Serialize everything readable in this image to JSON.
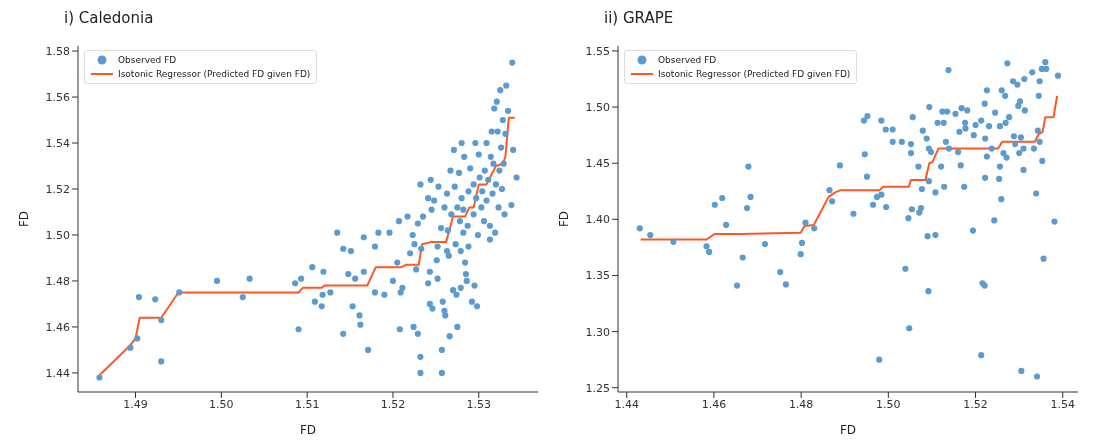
{
  "chart_data": [
    {
      "type": "scatter",
      "title": "i) Caledonia",
      "xlabel": "FD",
      "ylabel": "FD",
      "legend": "top left",
      "grid": false,
      "xlim": [
        1.4833,
        1.5369
      ],
      "xticks": [
        1.49,
        {
          "value": 1.5,
          "label": "1.50"
        },
        1.51,
        1.52,
        1.53
      ],
      "ylim": [
        1.4317,
        1.5822
      ],
      "yticks": [
        1.44,
        1.46,
        1.48,
        {
          "value": 1.5,
          "label": "1.50"
        },
        1.52,
        1.54,
        1.56,
        1.58
      ],
      "series": [
        {
          "name": "Observed FD",
          "type": "scatter",
          "marker": "circle",
          "color": "#5b9bd0",
          "x": [
            1.4858,
            1.4894,
            1.4902,
            1.4904,
            1.4923,
            1.493,
            1.493,
            1.4951,
            1.4995,
            1.5025,
            1.5033,
            1.5086,
            1.509,
            1.5093,
            1.5106,
            1.5109,
            1.5117,
            1.5118,
            1.5119,
            1.5127,
            1.5135,
            1.5142,
            1.5142,
            1.5148,
            1.5151,
            1.5153,
            1.5156,
            1.5161,
            1.5162,
            1.5166,
            1.5166,
            1.5171,
            1.5179,
            1.5179,
            1.5183,
            1.519,
            1.5196,
            1.52,
            1.5205,
            1.5207,
            1.5208,
            1.5209,
            1.5211,
            1.5217,
            1.522,
            1.5223,
            1.5224,
            1.5225,
            1.5227,
            1.5229,
            1.5229,
            1.5232,
            1.5232,
            1.5232,
            1.5233,
            1.5235,
            1.5241,
            1.5243,
            1.5243,
            1.5244,
            1.5246,
            1.5241,
            1.5245,
            1.5248,
            1.5252,
            1.5252,
            1.5251,
            1.5253,
            1.5256,
            1.5257,
            1.5257,
            1.5258,
            1.526,
            1.526,
            1.5261,
            1.5263,
            1.5263,
            1.5264,
            1.5265,
            1.5266,
            1.5267,
            1.5268,
            1.527,
            1.5271,
            1.5272,
            1.5273,
            1.5274,
            1.5275,
            1.5275,
            1.5277,
            1.5278,
            1.5279,
            1.5279,
            1.528,
            1.528,
            1.5282,
            1.5282,
            1.5283,
            1.5284,
            1.5285,
            1.5286,
            1.5287,
            1.5288,
            1.5288,
            1.529,
            1.5292,
            1.5294,
            1.5294,
            1.5295,
            1.5296,
            1.5297,
            1.5298,
            1.5299,
            1.53,
            1.5301,
            1.5303,
            1.5304,
            1.5306,
            1.5307,
            1.5309,
            1.5309,
            1.5311,
            1.5313,
            1.5313,
            1.5314,
            1.5315,
            1.5316,
            1.5317,
            1.5318,
            1.5319,
            1.532,
            1.5321,
            1.5322,
            1.5323,
            1.5324,
            1.5325,
            1.5326,
            1.5327,
            1.5328,
            1.5329,
            1.533,
            1.5331,
            1.5332,
            1.5334,
            1.5338,
            1.5339,
            1.534,
            1.5344
          ],
          "values": [
            1.438,
            1.451,
            1.455,
            1.473,
            1.472,
            1.463,
            1.445,
            1.475,
            1.48,
            1.473,
            1.481,
            1.479,
            1.459,
            1.481,
            1.486,
            1.471,
            1.469,
            1.474,
            1.484,
            1.475,
            1.501,
            1.457,
            1.494,
            1.483,
            1.493,
            1.469,
            1.481,
            1.465,
            1.461,
            1.484,
            1.499,
            1.45,
            1.475,
            1.495,
            1.501,
            1.474,
            1.501,
            1.48,
            1.488,
            1.506,
            1.459,
            1.475,
            1.477,
            1.508,
            1.492,
            1.5,
            1.46,
            1.496,
            1.485,
            1.505,
            1.457,
            1.522,
            1.447,
            1.44,
            1.494,
            1.508,
            1.479,
            1.484,
            1.47,
            1.524,
            1.468,
            1.516,
            1.511,
            1.515,
            1.495,
            1.481,
            1.489,
            1.521,
            1.503,
            1.45,
            1.44,
            1.471,
            1.512,
            1.467,
            1.465,
            1.493,
            1.518,
            1.502,
            1.491,
            1.456,
            1.528,
            1.509,
            1.476,
            1.537,
            1.521,
            1.496,
            1.474,
            1.46,
            1.512,
            1.527,
            1.506,
            1.493,
            1.477,
            1.54,
            1.516,
            1.501,
            1.511,
            1.534,
            1.488,
            1.483,
            1.48,
            1.504,
            1.519,
            1.495,
            1.529,
            1.471,
            1.509,
            1.522,
            1.478,
            1.54,
            1.516,
            1.469,
            1.5,
            1.535,
            1.525,
            1.512,
            1.519,
            1.506,
            1.528,
            1.54,
            1.515,
            1.524,
            1.504,
            1.498,
            1.534,
            1.545,
            1.518,
            1.531,
            1.555,
            1.501,
            1.522,
            1.558,
            1.545,
            1.512,
            1.528,
            1.563,
            1.538,
            1.52,
            1.55,
            1.531,
            1.509,
            1.544,
            1.565,
            1.554,
            1.513,
            1.575,
            1.537,
            1.525
          ]
        },
        {
          "name": "Isotonic Regressor (Predicted FD given FD)",
          "type": "line",
          "marker": "none",
          "color": "#ff5722",
          "x": [
            1.4858,
            1.4894,
            1.49,
            1.4905,
            1.493,
            1.495,
            1.509,
            1.5095,
            1.5117,
            1.512,
            1.517,
            1.518,
            1.521,
            1.5215,
            1.523,
            1.5234,
            1.5245,
            1.5262,
            1.527,
            1.5284,
            1.5289,
            1.5294,
            1.53,
            1.5309,
            1.532,
            1.5328,
            1.5331,
            1.5335,
            1.5342
          ],
          "values": [
            1.439,
            1.452,
            1.455,
            1.464,
            1.464,
            1.475,
            1.475,
            1.477,
            1.477,
            1.478,
            1.478,
            1.486,
            1.486,
            1.487,
            1.487,
            1.496,
            1.497,
            1.497,
            1.508,
            1.508,
            1.512,
            1.512,
            1.522,
            1.522,
            1.53,
            1.531,
            1.534,
            1.551,
            1.551
          ]
        }
      ]
    },
    {
      "type": "scatter",
      "title": "ii) GRAPE",
      "xlabel": "FD",
      "ylabel": "FD",
      "legend": "top left",
      "grid": false,
      "xlim": [
        1.438,
        1.5435
      ],
      "xticks": [
        1.44,
        1.46,
        1.48,
        {
          "value": 1.5,
          "label": "1.50"
        },
        1.52,
        1.54
      ],
      "ylim": [
        1.2462,
        1.5544
      ],
      "yticks": [
        1.25,
        {
          "value": 1.3,
          "label": "1.30"
        },
        1.35,
        {
          "value": 1.4,
          "label": "1.40"
        },
        1.45,
        {
          "value": 1.5,
          "label": "1.50"
        },
        1.55
      ],
      "series": [
        {
          "name": "Observed FD",
          "type": "scatter",
          "marker": "circle",
          "color": "#5b9bd0",
          "x": [
            1.443,
            1.4454,
            1.4507,
            1.4583,
            1.4589,
            1.4602,
            1.4619,
            1.4628,
            1.4653,
            1.4666,
            1.4676,
            1.4679,
            1.4684,
            1.4717,
            1.4752,
            1.4765,
            1.4799,
            1.4802,
            1.481,
            1.483,
            1.4865,
            1.4871,
            1.4889,
            1.492,
            1.4944,
            1.4946,
            1.4952,
            1.4951,
            1.4965,
            1.4974,
            1.4979,
            1.4984,
            1.4984,
            1.4994,
            1.4995,
            1.501,
            1.501,
            1.5031,
            1.5039,
            1.5046,
            1.5048,
            1.5052,
            1.5052,
            1.5054,
            1.5056,
            1.5069,
            1.5071,
            1.5075,
            1.5077,
            1.5079,
            1.5088,
            1.509,
            1.5092,
            1.5093,
            1.5094,
            1.5093,
            1.5098,
            1.5108,
            1.5108,
            1.5113,
            1.5121,
            1.5124,
            1.5127,
            1.5128,
            1.5132,
            1.5135,
            1.5138,
            1.5139,
            1.5154,
            1.516,
            1.5163,
            1.5166,
            1.5168,
            1.5174,
            1.5176,
            1.5177,
            1.5181,
            1.5194,
            1.5196,
            1.52,
            1.5213,
            1.5213,
            1.5216,
            1.5221,
            1.5221,
            1.5222,
            1.5222,
            1.5226,
            1.5226,
            1.5231,
            1.5237,
            1.5243,
            1.5245,
            1.5254,
            1.5256,
            1.5256,
            1.5259,
            1.526,
            1.5264,
            1.5268,
            1.5269,
            1.5271,
            1.5273,
            1.5277,
            1.5286,
            1.5288,
            1.5291,
            1.5296,
            1.5298,
            1.53,
            1.5302,
            1.5304,
            1.5305,
            1.531,
            1.531,
            1.5312,
            1.5313,
            1.533,
            1.5334,
            1.5339,
            1.5341,
            1.5343,
            1.5345,
            1.5347,
            1.5347,
            1.5352,
            1.5353,
            1.5356,
            1.536,
            1.5362,
            1.5381,
            1.5389
          ],
          "values": [
            1.392,
            1.386,
            1.38,
            1.376,
            1.371,
            1.413,
            1.419,
            1.395,
            1.341,
            1.366,
            1.41,
            1.447,
            1.42,
            1.378,
            1.353,
            1.342,
            1.369,
            1.379,
            1.397,
            1.392,
            1.426,
            1.416,
            1.448,
            1.405,
            1.488,
            1.458,
            1.492,
            1.438,
            1.413,
            1.42,
            1.275,
            1.422,
            1.488,
            1.48,
            1.411,
            1.48,
            1.469,
            1.469,
            1.356,
            1.401,
            1.303,
            1.459,
            1.467,
            1.409,
            1.491,
            1.447,
            1.406,
            1.41,
            1.427,
            1.479,
            1.472,
            1.385,
            1.336,
            1.434,
            1.5,
            1.463,
            1.46,
            1.424,
            1.386,
            1.486,
            1.447,
            1.496,
            1.486,
            1.429,
            1.469,
            1.496,
            1.533,
            1.463,
            1.494,
            1.46,
            1.478,
            1.448,
            1.499,
            1.429,
            1.486,
            1.481,
            1.497,
            1.39,
            1.475,
            1.484,
            1.488,
            1.279,
            1.343,
            1.341,
            1.503,
            1.472,
            1.437,
            1.515,
            1.456,
            1.483,
            1.463,
            1.399,
            1.495,
            1.436,
            1.447,
            1.483,
            1.418,
            1.515,
            1.459,
            1.51,
            1.486,
            1.455,
            1.539,
            1.491,
            1.523,
            1.474,
            1.467,
            1.52,
            1.501,
            1.459,
            1.505,
            1.473,
            1.265,
            1.463,
            1.444,
            1.525,
            1.497,
            1.531,
            1.463,
            1.423,
            1.26,
            1.479,
            1.51,
            1.523,
            1.469,
            1.534,
            1.452,
            1.365,
            1.54,
            1.534,
            1.398,
            1.528
          ]
        },
        {
          "name": "Isotonic Regressor (Predicted FD given FD)",
          "type": "line",
          "marker": "none",
          "color": "#ff5722",
          "x": [
            1.4432,
            1.4583,
            1.4602,
            1.4662,
            1.4799,
            1.4808,
            1.4829,
            1.4863,
            1.4878,
            1.4891,
            1.498,
            1.4988,
            1.5047,
            1.5052,
            1.5085,
            1.5094,
            1.5101,
            1.5115,
            1.5252,
            1.5261,
            1.5336,
            1.5345,
            1.5354,
            1.536,
            1.5379,
            1.5387
          ],
          "values": [
            1.382,
            1.382,
            1.387,
            1.387,
            1.388,
            1.394,
            1.395,
            1.42,
            1.424,
            1.426,
            1.426,
            1.429,
            1.429,
            1.435,
            1.435,
            1.45,
            1.451,
            1.463,
            1.463,
            1.469,
            1.469,
            1.476,
            1.478,
            1.491,
            1.491,
            1.51
          ]
        }
      ]
    }
  ]
}
